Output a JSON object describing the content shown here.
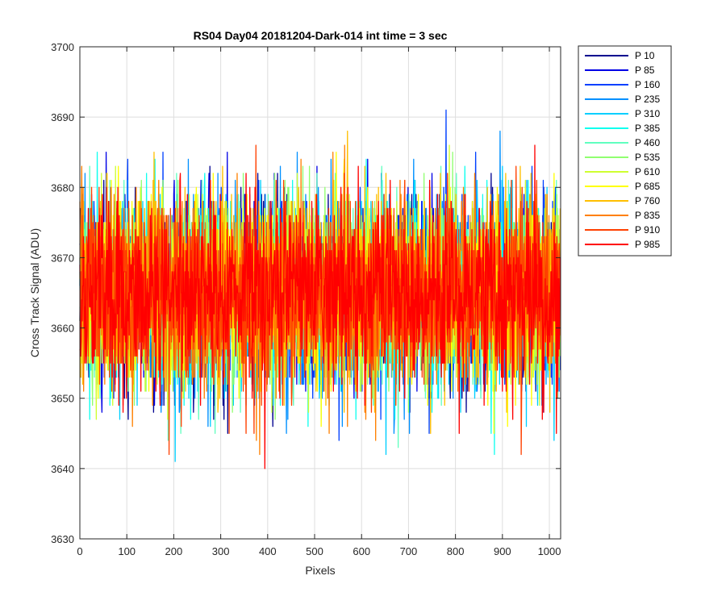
{
  "chart_data": {
    "type": "line",
    "title": "RS04 Day04 20181204-Dark-014 int time = 3 sec",
    "xlabel": "Pixels",
    "ylabel": "Cross Track Signal (ADU)",
    "xlim": [
      0,
      1024
    ],
    "ylim": [
      3630,
      3700
    ],
    "xticks": [
      0,
      100,
      200,
      300,
      400,
      500,
      600,
      700,
      800,
      900,
      1000
    ],
    "yticks": [
      3630,
      3640,
      3650,
      3660,
      3670,
      3680,
      3690,
      3700
    ],
    "grid": true,
    "legend_position": "outside-top-right",
    "n_points": 1024,
    "noise": {
      "mean": 3665,
      "std": 6.5,
      "min": 3632,
      "max": 3693
    },
    "series": [
      {
        "name": "P 10",
        "color": "#00008F"
      },
      {
        "name": "P 85",
        "color": "#0000E6"
      },
      {
        "name": "P 160",
        "color": "#0040FF"
      },
      {
        "name": "P 235",
        "color": "#0090FF"
      },
      {
        "name": "P 310",
        "color": "#00CFFF"
      },
      {
        "name": "P 385",
        "color": "#10FFEF"
      },
      {
        "name": "P 460",
        "color": "#60FFBF"
      },
      {
        "name": "P 535",
        "color": "#90FF70"
      },
      {
        "name": "P 610",
        "color": "#CFFF30"
      },
      {
        "name": "P 685",
        "color": "#FFFF00"
      },
      {
        "name": "P 760",
        "color": "#FFBF00"
      },
      {
        "name": "P 835",
        "color": "#FF8000"
      },
      {
        "name": "P 910",
        "color": "#FF4000"
      },
      {
        "name": "P 985",
        "color": "#FF0000"
      }
    ]
  }
}
